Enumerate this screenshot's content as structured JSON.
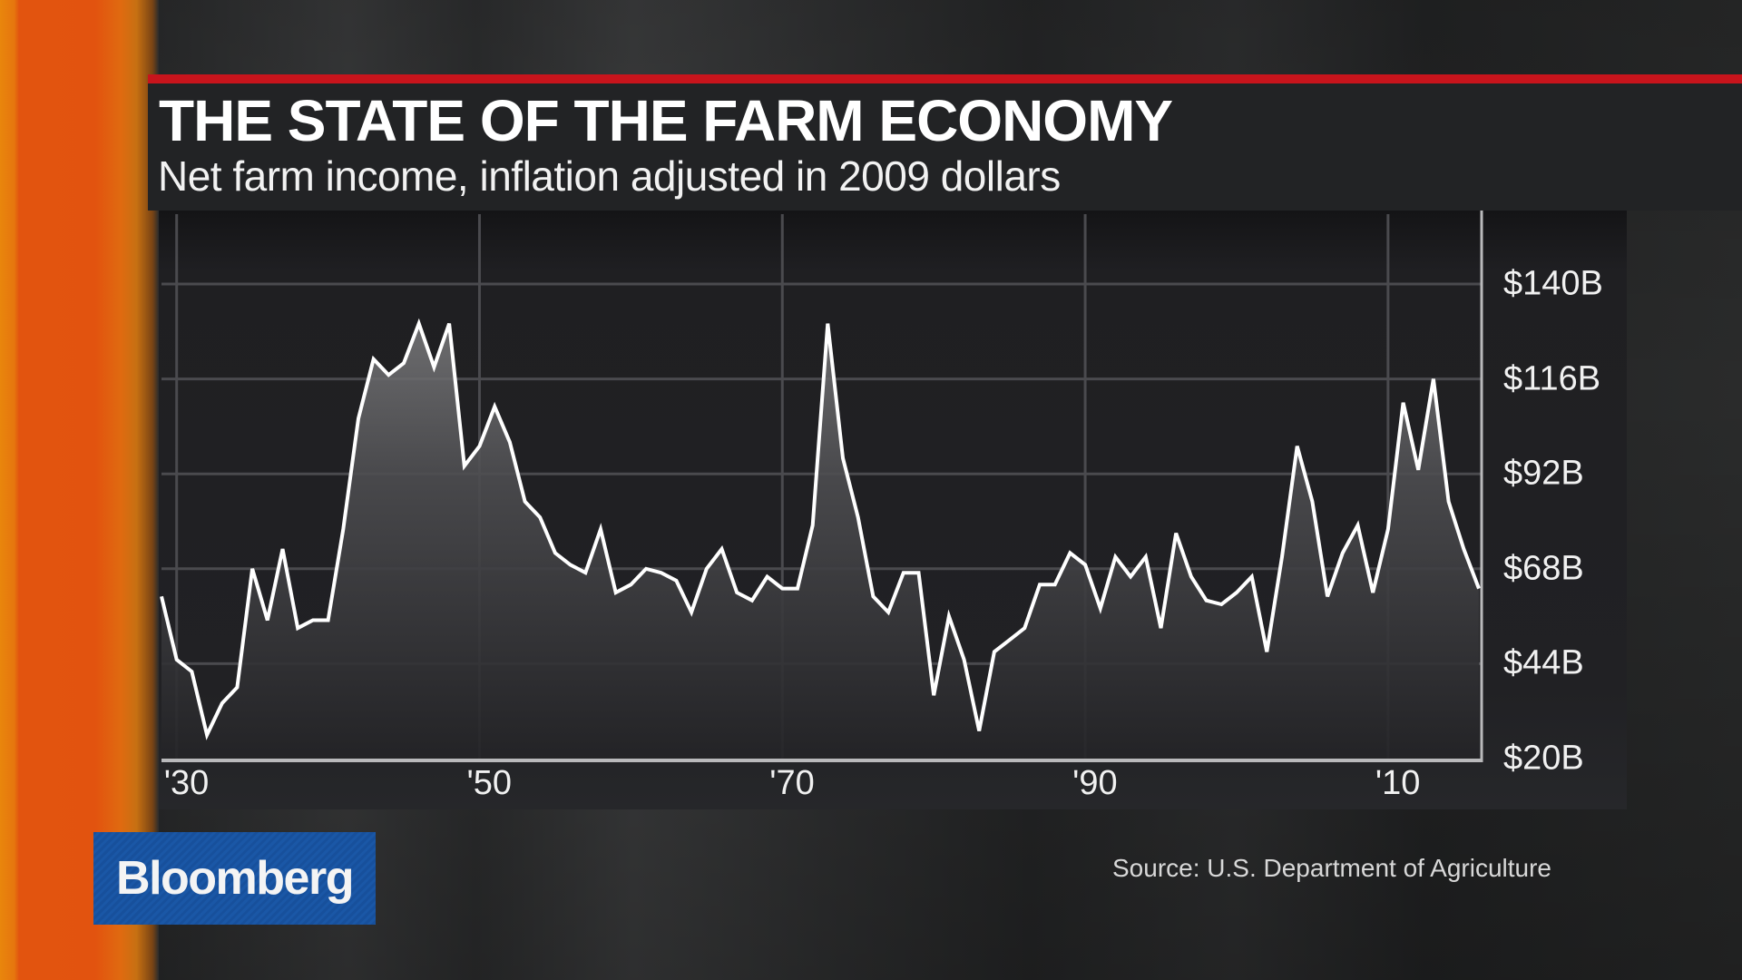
{
  "header": {
    "title": "THE STATE OF THE FARM ECONOMY",
    "subtitle": "Net farm income, inflation adjusted in 2009 dollars"
  },
  "footer": {
    "source": "Source: U.S. Department of Agriculture",
    "brand": "Bloomberg"
  },
  "colors": {
    "accent_red": "#c8141c",
    "brand_blue": "#17509c",
    "side_orange": "#e2530f",
    "line": "#ffffff",
    "panel": "#1f1f22"
  },
  "chart_data": {
    "type": "area",
    "title": "THE STATE OF THE FARM ECONOMY",
    "subtitle": "Net farm income, inflation adjusted in 2009 dollars",
    "xlabel": "",
    "ylabel": "",
    "x_tick_labels": [
      "'30",
      "'50",
      "'70",
      "'90",
      "'10"
    ],
    "x_tick_years": [
      1930,
      1950,
      1970,
      1990,
      2010
    ],
    "y_tick_labels": [
      "$140B",
      "$116B",
      "$92B",
      "$68B",
      "$44B",
      "$20B"
    ],
    "y_ticks": [
      140,
      116,
      92,
      68,
      44,
      20
    ],
    "ylim": [
      20,
      140
    ],
    "xlim": [
      1929,
      2016
    ],
    "grid": true,
    "y_axis_position": "right",
    "legend": null,
    "units": "billions of 2009 dollars",
    "series": [
      {
        "name": "Net farm income",
        "x": [
          1929,
          1930,
          1931,
          1932,
          1933,
          1934,
          1935,
          1936,
          1937,
          1938,
          1939,
          1940,
          1941,
          1942,
          1943,
          1944,
          1945,
          1946,
          1947,
          1948,
          1949,
          1950,
          1951,
          1952,
          1953,
          1954,
          1955,
          1956,
          1957,
          1958,
          1959,
          1960,
          1961,
          1962,
          1963,
          1964,
          1965,
          1966,
          1967,
          1968,
          1969,
          1970,
          1971,
          1972,
          1973,
          1974,
          1975,
          1976,
          1977,
          1978,
          1979,
          1980,
          1981,
          1982,
          1983,
          1984,
          1985,
          1986,
          1987,
          1988,
          1989,
          1990,
          1991,
          1992,
          1993,
          1994,
          1995,
          1996,
          1997,
          1998,
          1999,
          2000,
          2001,
          2002,
          2003,
          2004,
          2005,
          2006,
          2007,
          2008,
          2009,
          2010,
          2011,
          2012,
          2013,
          2014,
          2015,
          2016
        ],
        "values": [
          61,
          45,
          42,
          26,
          34,
          38,
          68,
          55,
          73,
          53,
          55,
          55,
          78,
          106,
          121,
          117,
          120,
          130,
          119,
          130,
          94,
          99,
          109,
          100,
          85,
          81,
          72,
          69,
          67,
          78,
          62,
          64,
          68,
          67,
          65,
          57,
          68,
          73,
          62,
          60,
          66,
          63,
          63,
          79,
          130,
          96,
          81,
          61,
          57,
          67,
          67,
          36,
          56,
          45,
          27,
          47,
          50,
          53,
          64,
          64,
          72,
          69,
          58,
          71,
          66,
          71,
          53,
          77,
          66,
          60,
          59,
          62,
          66,
          47,
          71,
          99,
          85,
          61,
          72,
          79,
          62,
          78,
          110,
          93,
          116,
          85,
          73,
          63
        ]
      }
    ]
  }
}
